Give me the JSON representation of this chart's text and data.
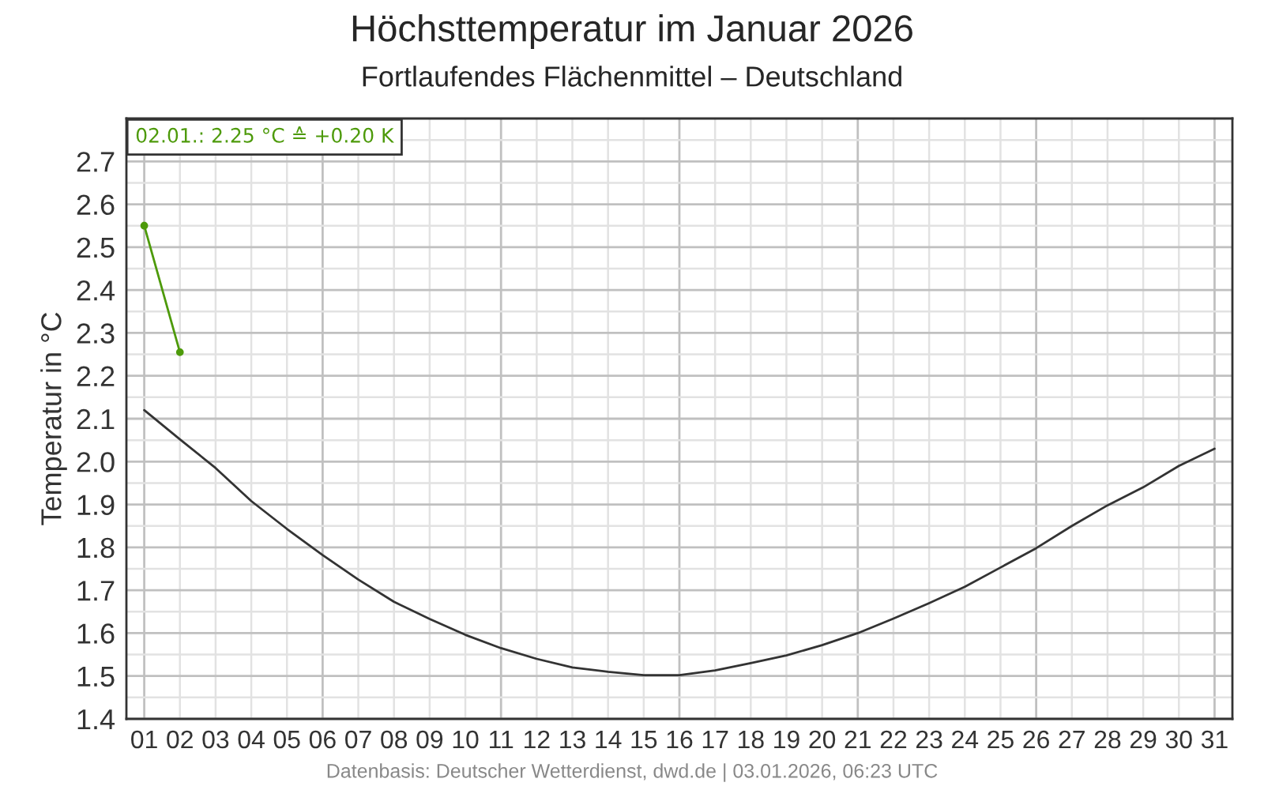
{
  "chart_data": {
    "type": "line",
    "title": "Höchsttemperatur im Januar 2026",
    "subtitle": "Fortlaufendes Flächenmittel – Deutschland",
    "ylabel": "Temperatur in °C",
    "x": [
      1,
      2,
      3,
      4,
      5,
      6,
      7,
      8,
      9,
      10,
      11,
      12,
      13,
      14,
      15,
      16,
      17,
      18,
      19,
      20,
      21,
      22,
      23,
      24,
      25,
      26,
      27,
      28,
      29,
      30,
      31
    ],
    "series": [
      {
        "color": "#333333",
        "marker": "none",
        "values": [
          2.12,
          2.052,
          1.985,
          1.908,
          1.843,
          1.782,
          1.725,
          1.673,
          1.633,
          1.596,
          1.565,
          1.54,
          1.52,
          1.51,
          1.502,
          1.502,
          1.513,
          1.53,
          1.548,
          1.572,
          1.6,
          1.634,
          1.67,
          1.708,
          1.753,
          1.798,
          1.85,
          1.898,
          1.94,
          1.99,
          2.03
        ]
      },
      {
        "color": "#4d9a0a",
        "marker": "circle",
        "x": [
          1,
          2
        ],
        "values": [
          2.55,
          2.255
        ]
      }
    ],
    "xlim": [
      0.5,
      31.5
    ],
    "xticks": [
      {
        "value": 1,
        "label": "01"
      },
      {
        "value": 2,
        "label": "02"
      },
      {
        "value": 3,
        "label": "03"
      },
      {
        "value": 4,
        "label": "04"
      },
      {
        "value": 5,
        "label": "05"
      },
      {
        "value": 6,
        "label": "06"
      },
      {
        "value": 7,
        "label": "07"
      },
      {
        "value": 8,
        "label": "08"
      },
      {
        "value": 9,
        "label": "09"
      },
      {
        "value": 10,
        "label": "10"
      },
      {
        "value": 11,
        "label": "11"
      },
      {
        "value": 12,
        "label": "12"
      },
      {
        "value": 13,
        "label": "13"
      },
      {
        "value": 14,
        "label": "14"
      },
      {
        "value": 15,
        "label": "15"
      },
      {
        "value": 16,
        "label": "16"
      },
      {
        "value": 17,
        "label": "17"
      },
      {
        "value": 18,
        "label": "18"
      },
      {
        "value": 19,
        "label": "19"
      },
      {
        "value": 20,
        "label": "20"
      },
      {
        "value": 21,
        "label": "21"
      },
      {
        "value": 22,
        "label": "22"
      },
      {
        "value": 23,
        "label": "23"
      },
      {
        "value": 24,
        "label": "24"
      },
      {
        "value": 25,
        "label": "25"
      },
      {
        "value": 26,
        "label": "26"
      },
      {
        "value": 27,
        "label": "27"
      },
      {
        "value": 28,
        "label": "28"
      },
      {
        "value": 29,
        "label": "29"
      },
      {
        "value": 30,
        "label": "30"
      },
      {
        "value": 31,
        "label": "31"
      }
    ],
    "ylim": [
      1.4,
      2.8
    ],
    "yticks": [
      {
        "value": 1.4,
        "label": "1.4"
      },
      {
        "value": 1.5,
        "label": "1.5"
      },
      {
        "value": 1.6,
        "label": "1.6"
      },
      {
        "value": 1.7,
        "label": "1.7"
      },
      {
        "value": 1.8,
        "label": "1.8"
      },
      {
        "value": 1.9,
        "label": "1.9"
      },
      {
        "value": 2.0,
        "label": "2.0"
      },
      {
        "value": 2.1,
        "label": "2.1"
      },
      {
        "value": 2.2,
        "label": "2.2"
      },
      {
        "value": 2.3,
        "label": "2.3"
      },
      {
        "value": 2.4,
        "label": "2.4"
      },
      {
        "value": 2.5,
        "label": "2.5"
      },
      {
        "value": 2.6,
        "label": "2.6"
      },
      {
        "value": 2.7,
        "label": "2.7"
      }
    ],
    "grid": true,
    "line_style": "solid",
    "annotations": [
      "02.01.: 2.25 °C ≙ +0.20 K",
      "Datenbasis: Deutscher Wetterdienst, dwd.de | 03.01.2026, 06:23 UTC"
    ]
  }
}
